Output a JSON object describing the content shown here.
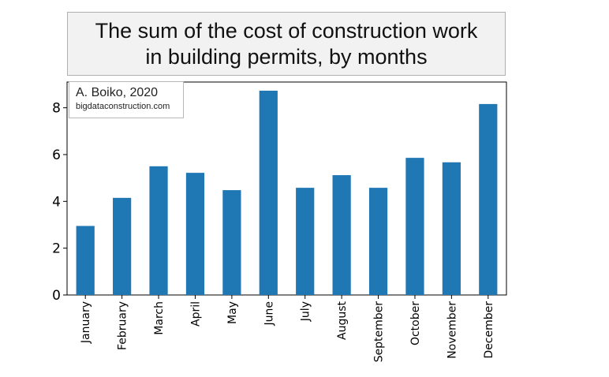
{
  "title": {
    "line1": "The sum of the cost of construction work",
    "line2": "in building permits, by months"
  },
  "credit": {
    "author": "A. Boiko, 2020",
    "site": "bigdataconstruction.com"
  },
  "colors": {
    "bar": "#1f77b4",
    "title_background": "#f2f2f2",
    "axis": "#000000"
  },
  "chart_data": {
    "type": "bar",
    "title": "The sum of the cost of construction work in building permits, by months",
    "xlabel": "",
    "ylabel": "",
    "categories": [
      "January",
      "February",
      "March",
      "April",
      "May",
      "June",
      "July",
      "August",
      "September",
      "October",
      "November",
      "December"
    ],
    "values": [
      2.95,
      4.15,
      5.5,
      5.22,
      4.48,
      8.73,
      4.58,
      5.12,
      4.58,
      5.86,
      5.67,
      8.16
    ],
    "ylim": [
      0,
      9.1
    ],
    "yticks": [
      0,
      2,
      4,
      6,
      8
    ],
    "grid": false,
    "legend": "none"
  }
}
